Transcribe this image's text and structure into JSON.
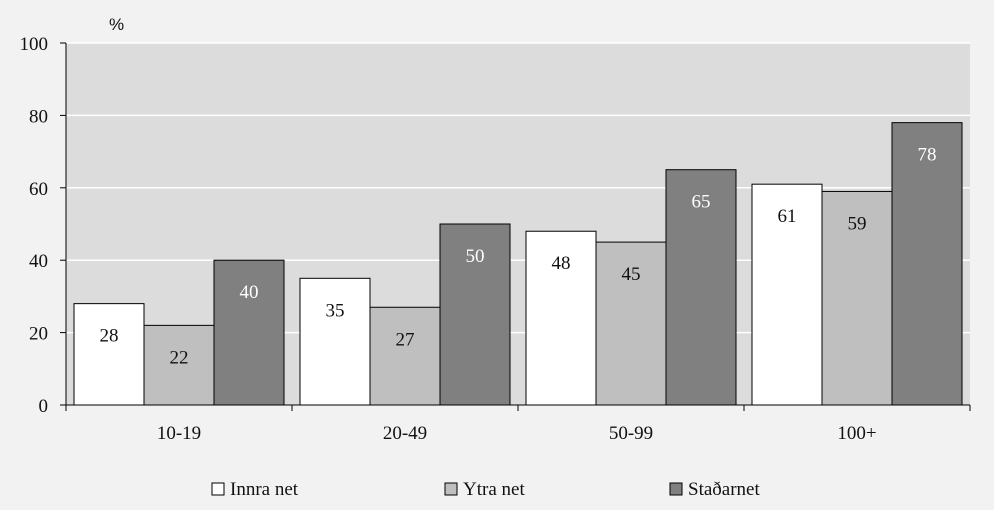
{
  "colors": {
    "background": "#f2f2f2",
    "plot_area": "#dcdcdc",
    "gridline": "#ffffff",
    "series": [
      "#ffffff",
      "#bfbfbf",
      "#808080"
    ],
    "label_light": "#ffffff",
    "label_dark": "#111111"
  },
  "chart_data": {
    "type": "bar",
    "title": "",
    "unit": "%",
    "xlabel": "",
    "ylabel": "",
    "categories": [
      "10-19",
      "20-49",
      "50-99",
      "100+"
    ],
    "series": [
      {
        "name": "Innra net",
        "values": [
          28,
          35,
          48,
          61
        ]
      },
      {
        "name": "Ytra net",
        "values": [
          22,
          27,
          45,
          59
        ]
      },
      {
        "name": "Staðarnet",
        "values": [
          40,
          50,
          65,
          78
        ]
      }
    ],
    "ylim": [
      0,
      100
    ],
    "yticks": [
      0,
      20,
      40,
      60,
      80,
      100
    ],
    "grid": true,
    "legend_position": "bottom",
    "data_labels": true
  }
}
